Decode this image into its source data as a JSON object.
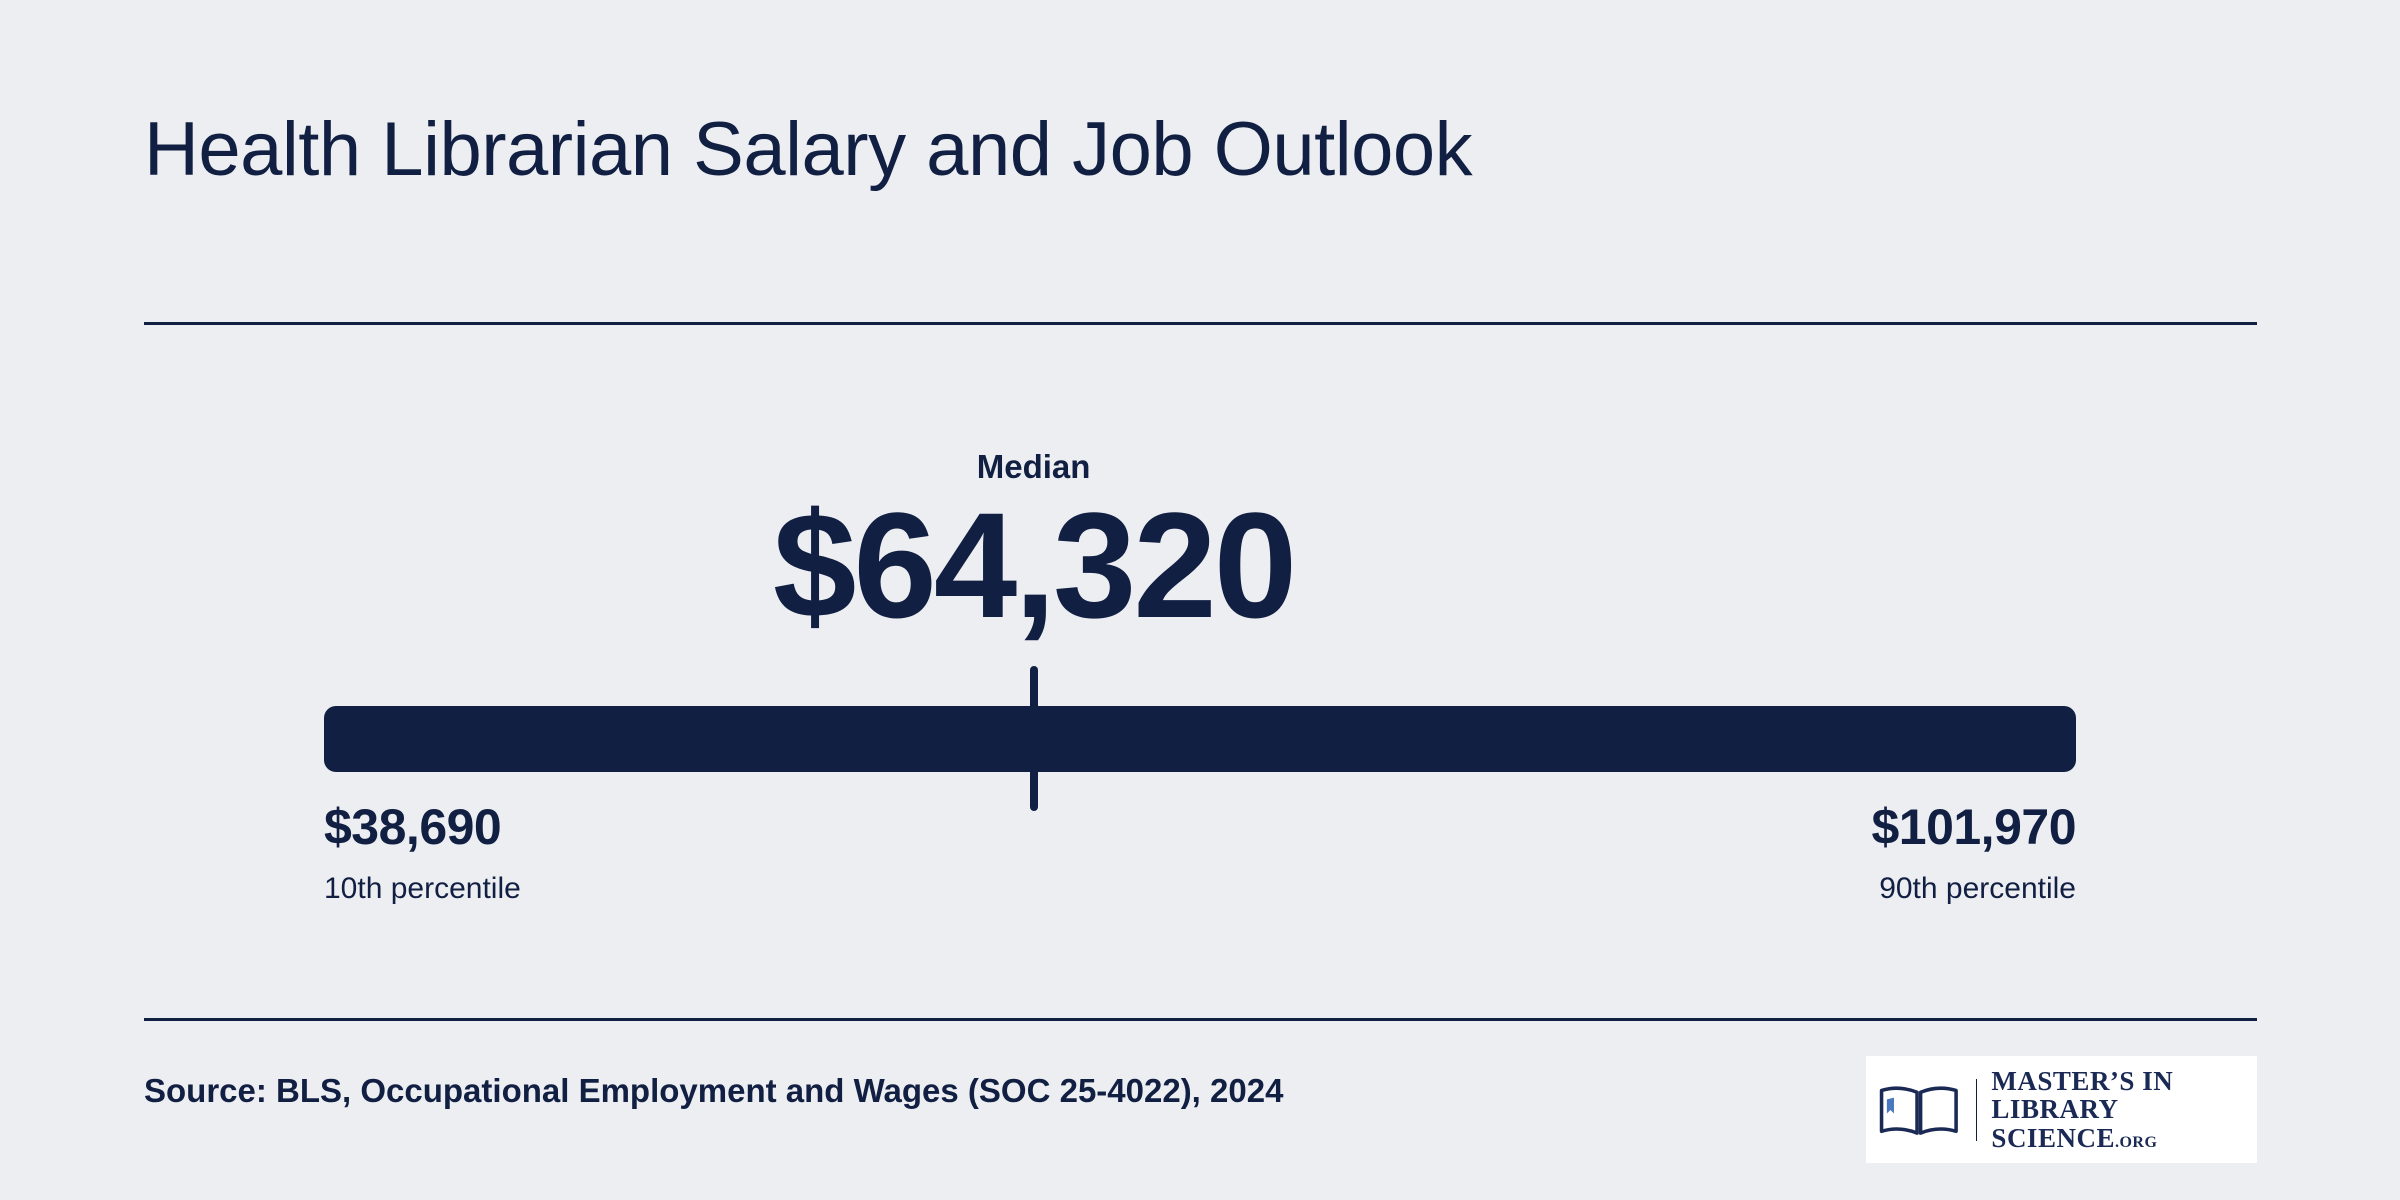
{
  "title": "Health Librarian Salary and Job Outlook",
  "chart_data": {
    "type": "range",
    "title": "Health Librarian Salary and Job Outlook",
    "min": 38690,
    "max": 101970,
    "median": 64320,
    "median_label": "Median",
    "median_display": "$64,320",
    "low": {
      "value": 38690,
      "display": "$38,690",
      "caption": "10th percentile"
    },
    "high": {
      "value": 101970,
      "display": "$101,970",
      "caption": "90th percentile"
    },
    "bar_color": "#111f42"
  },
  "source": "Source: BLS, Occupational Employment and Wages (SOC 25-4022), 2024",
  "logo": {
    "icon": "open-book-icon",
    "line1": "MASTER’S IN",
    "line2": "LIBRARY SCIENCE",
    "suffix": ".ORG"
  },
  "colors": {
    "background": "#edeef2",
    "text": "#111f42"
  }
}
